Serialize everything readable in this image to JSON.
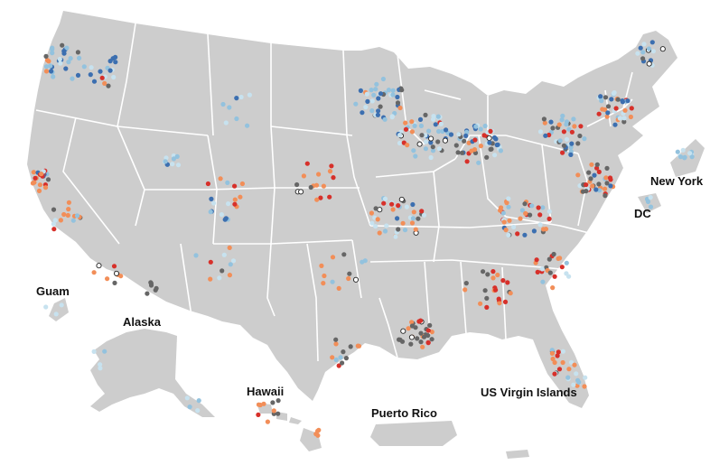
{
  "map": {
    "colors": {
      "land": "#cdcdcd",
      "border": "#ffffff",
      "palette": [
        "#c7e2ef",
        "#93c2de",
        "#3c6fb0",
        "#f28e58",
        "#d7302a",
        "#666666",
        "#ffffff"
      ]
    },
    "labels": {
      "guam": "Guam",
      "alaska": "Alaska",
      "hawaii": "Hawaii",
      "puerto_rico": "Puerto Rico",
      "us_virgin_islands": "US Virgin Islands",
      "new_york": "New York",
      "dc": "DC"
    }
  }
}
